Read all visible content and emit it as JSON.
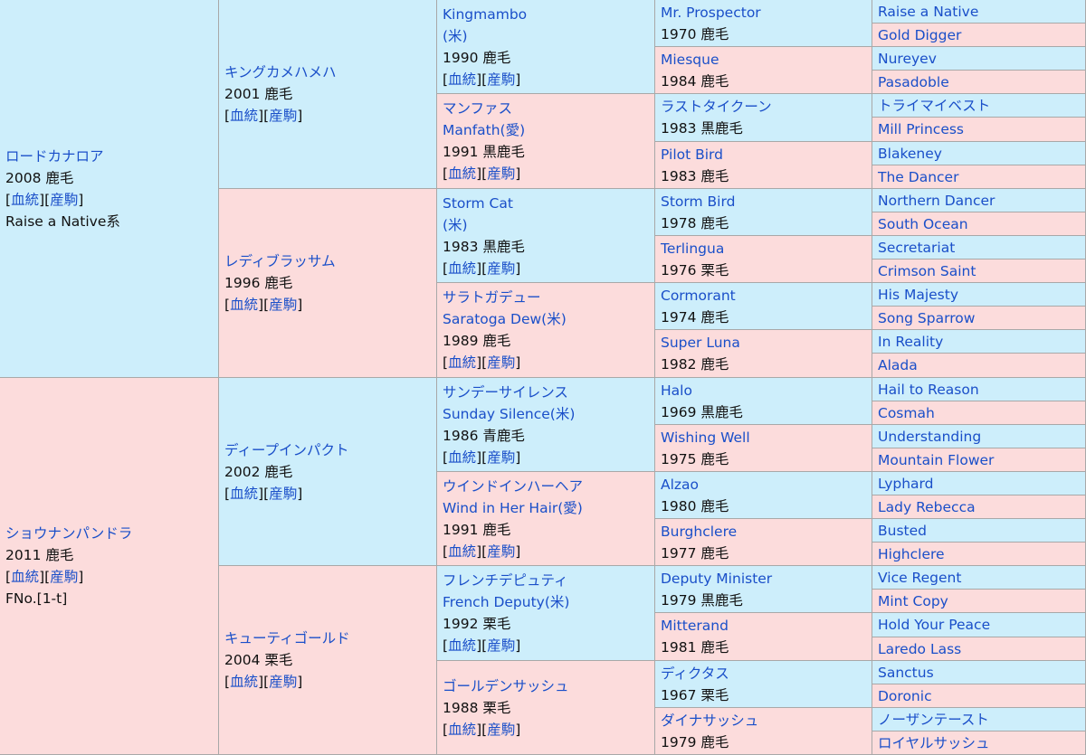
{
  "pedigree": {
    "brackets": [
      "[",
      "][",
      "]"
    ],
    "link_labels": [
      "血統",
      "産駒"
    ],
    "generations": [
      [
        {
          "name": "ロードカナロア",
          "sex": "m",
          "info": "2008 鹿毛",
          "links": true,
          "extra": "Raise a Native系"
        },
        {
          "name": "ショウナンパンドラ",
          "sex": "f",
          "info": "2011 鹿毛",
          "links": true,
          "extra": "FNo.[1-t]"
        }
      ],
      [
        {
          "name": "キングカメハメハ",
          "sex": "m",
          "info": "2001 鹿毛",
          "links": true
        },
        {
          "name": "レディブラッサム",
          "sex": "f",
          "info": "1996 鹿毛",
          "links": true
        },
        {
          "name": "ディープインパクト",
          "sex": "m",
          "info": "2002 鹿毛",
          "links": true
        },
        {
          "name": "キューティゴールド",
          "sex": "f",
          "info": "2004 栗毛",
          "links": true
        }
      ],
      [
        {
          "name": "Kingmambo",
          "alt": "(米)",
          "sex": "m",
          "info": "1990 鹿毛",
          "links": true
        },
        {
          "name": "マンファス",
          "alt": "Manfath(愛)",
          "sex": "f",
          "info": "1991 黒鹿毛",
          "links": true
        },
        {
          "name": "Storm Cat",
          "alt": "(米)",
          "sex": "m",
          "info": "1983 黒鹿毛",
          "links": true
        },
        {
          "name": "サラトガデュー",
          "alt": "Saratoga Dew(米)",
          "sex": "f",
          "info": "1989 鹿毛",
          "links": true
        },
        {
          "name": "サンデーサイレンス",
          "alt": "Sunday Silence(米)",
          "sex": "m",
          "info": "1986 青鹿毛",
          "links": true
        },
        {
          "name": "ウインドインハーヘア",
          "alt": "Wind in Her Hair(愛)",
          "sex": "f",
          "info": "1991 鹿毛",
          "links": true
        },
        {
          "name": "フレンチデピュティ",
          "alt": "French Deputy(米)",
          "sex": "m",
          "info": "1992 栗毛",
          "links": true
        },
        {
          "name": "ゴールデンサッシュ",
          "sex": "f",
          "info": "1988 栗毛",
          "links": true
        }
      ],
      [
        {
          "name": "Mr. Prospector",
          "sex": "m",
          "info": "1970 鹿毛"
        },
        {
          "name": "Miesque",
          "sex": "f",
          "info": "1984 鹿毛"
        },
        {
          "name": "ラストタイクーン",
          "sex": "m",
          "info": "1983 黒鹿毛"
        },
        {
          "name": "Pilot Bird",
          "sex": "f",
          "info": "1983 鹿毛"
        },
        {
          "name": "Storm Bird",
          "sex": "m",
          "info": "1978 鹿毛"
        },
        {
          "name": "Terlingua",
          "sex": "f",
          "info": "1976 栗毛"
        },
        {
          "name": "Cormorant",
          "sex": "m",
          "info": "1974 鹿毛"
        },
        {
          "name": "Super Luna",
          "sex": "f",
          "info": "1982 鹿毛"
        },
        {
          "name": "Halo",
          "sex": "m",
          "info": "1969 黒鹿毛"
        },
        {
          "name": "Wishing Well",
          "sex": "f",
          "info": "1975 鹿毛"
        },
        {
          "name": "Alzao",
          "sex": "m",
          "info": "1980 鹿毛"
        },
        {
          "name": "Burghclere",
          "sex": "f",
          "info": "1977 鹿毛"
        },
        {
          "name": "Deputy Minister",
          "sex": "m",
          "info": "1979 黒鹿毛"
        },
        {
          "name": "Mitterand",
          "sex": "f",
          "info": "1981 鹿毛"
        },
        {
          "name": "ディクタス",
          "sex": "m",
          "info": "1967 栗毛"
        },
        {
          "name": "ダイナサッシュ",
          "sex": "f",
          "info": "1979 鹿毛"
        }
      ],
      [
        {
          "name": "Raise a Native",
          "sex": "m"
        },
        {
          "name": "Gold Digger",
          "sex": "f"
        },
        {
          "name": "Nureyev",
          "sex": "m"
        },
        {
          "name": "Pasadoble",
          "sex": "f"
        },
        {
          "name": "トライマイベスト",
          "sex": "m"
        },
        {
          "name": "Mill Princess",
          "sex": "f"
        },
        {
          "name": "Blakeney",
          "sex": "m"
        },
        {
          "name": "The Dancer",
          "sex": "f"
        },
        {
          "name": "Northern Dancer",
          "sex": "m"
        },
        {
          "name": "South Ocean",
          "sex": "f"
        },
        {
          "name": "Secretariat",
          "sex": "m"
        },
        {
          "name": "Crimson Saint",
          "sex": "f"
        },
        {
          "name": "His Majesty",
          "sex": "m"
        },
        {
          "name": "Song Sparrow",
          "sex": "f"
        },
        {
          "name": "In Reality",
          "sex": "m"
        },
        {
          "name": "Alada",
          "sex": "f"
        },
        {
          "name": "Hail to Reason",
          "sex": "m"
        },
        {
          "name": "Cosmah",
          "sex": "f"
        },
        {
          "name": "Understanding",
          "sex": "m"
        },
        {
          "name": "Mountain Flower",
          "sex": "f"
        },
        {
          "name": "Lyphard",
          "sex": "m"
        },
        {
          "name": "Lady Rebecca",
          "sex": "f"
        },
        {
          "name": "Busted",
          "sex": "m"
        },
        {
          "name": "Highclere",
          "sex": "f"
        },
        {
          "name": "Vice Regent",
          "sex": "m"
        },
        {
          "name": "Mint Copy",
          "sex": "f"
        },
        {
          "name": "Hold Your Peace",
          "sex": "m"
        },
        {
          "name": "Laredo Lass",
          "sex": "f"
        },
        {
          "name": "Sanctus",
          "sex": "m"
        },
        {
          "name": "Doronic",
          "sex": "f"
        },
        {
          "name": "ノーザンテースト",
          "sex": "m"
        },
        {
          "name": "ロイヤルサッシュ",
          "sex": "f"
        }
      ]
    ]
  }
}
